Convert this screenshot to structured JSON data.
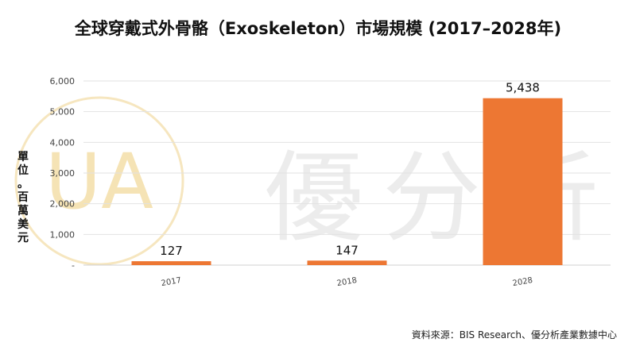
{
  "chart_data": {
    "type": "bar",
    "title": "全球穿戴式外骨骼（Exoskeleton）市場規模 (2017–2028年)",
    "ylabel": "單位。百萬美元",
    "xlabel": "",
    "categories": [
      "2017",
      "2018",
      "2028"
    ],
    "values": [
      127,
      147,
      5438
    ],
    "data_labels": [
      "127",
      "147",
      "5,438"
    ],
    "y_ticks": [
      "-",
      "1,000",
      "2,000",
      "3,000",
      "4,000",
      "5,000",
      "6,000"
    ],
    "ylim": [
      0,
      6000
    ],
    "grid": true,
    "legend": "none",
    "bar_color": "#ed7733"
  },
  "watermark": {
    "logo_text": "UA",
    "text": "優分析"
  },
  "source": "資料來源：BIS Research、優分析產業數據中心"
}
